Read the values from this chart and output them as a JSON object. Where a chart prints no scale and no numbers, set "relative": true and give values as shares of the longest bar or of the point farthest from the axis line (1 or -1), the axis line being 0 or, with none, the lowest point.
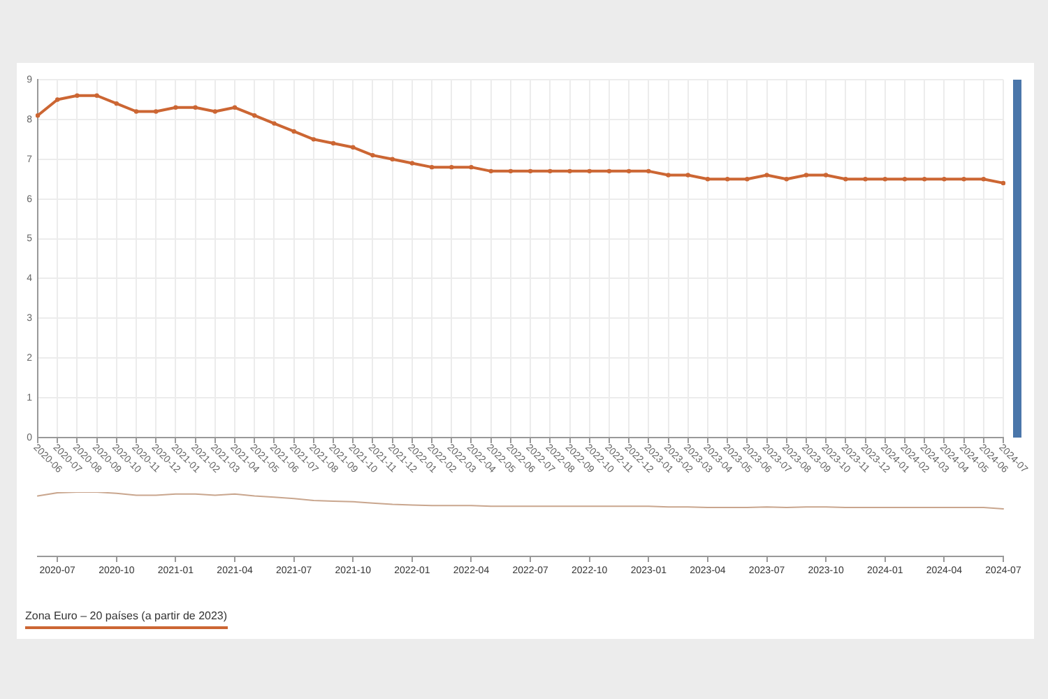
{
  "chart_data": [
    {
      "type": "line",
      "categories": [
        "2020-06",
        "2020-07",
        "2020-08",
        "2020-09",
        "2020-10",
        "2020-11",
        "2020-12",
        "2021-01",
        "2021-02",
        "2021-03",
        "2021-04",
        "2021-05",
        "2021-06",
        "2021-07",
        "2021-08",
        "2021-09",
        "2021-10",
        "2021-11",
        "2021-12",
        "2022-01",
        "2022-02",
        "2022-03",
        "2022-04",
        "2022-05",
        "2022-06",
        "2022-07",
        "2022-08",
        "2022-09",
        "2022-10",
        "2022-11",
        "2022-12",
        "2023-01",
        "2023-02",
        "2023-03",
        "2023-04",
        "2023-05",
        "2023-06",
        "2023-07",
        "2023-08",
        "2023-09",
        "2023-10",
        "2023-11",
        "2023-12",
        "2024-01",
        "2024-02",
        "2024-03",
        "2024-04",
        "2024-05",
        "2024-06",
        "2024-07"
      ],
      "series": [
        {
          "name": "Zona Euro – 20 países (a partir de 2023)",
          "color": "#cc6633",
          "values": [
            8.1,
            8.5,
            8.6,
            8.6,
            8.4,
            8.2,
            8.2,
            8.3,
            8.3,
            8.2,
            8.3,
            8.1,
            7.9,
            7.7,
            7.5,
            7.4,
            7.3,
            7.1,
            7.0,
            6.9,
            6.8,
            6.8,
            6.8,
            6.7,
            6.7,
            6.7,
            6.7,
            6.7,
            6.7,
            6.7,
            6.7,
            6.7,
            6.6,
            6.6,
            6.5,
            6.5,
            6.5,
            6.6,
            6.5,
            6.6,
            6.6,
            6.5,
            6.5,
            6.5,
            6.5,
            6.5,
            6.5,
            6.5,
            6.5,
            6.4
          ]
        }
      ],
      "ylim": [
        0,
        9
      ],
      "yticks": [
        0,
        1,
        2,
        3,
        4,
        5,
        6,
        7,
        8,
        9
      ],
      "grid": true,
      "marker": "circle",
      "legend": "bottom left"
    },
    {
      "type": "line",
      "categories": [
        null,
        "2020-07",
        null,
        null,
        "2020-10",
        null,
        null,
        "2021-01",
        null,
        null,
        "2021-04",
        null,
        null,
        "2021-07",
        null,
        null,
        "2021-10",
        null,
        null,
        "2022-01",
        null,
        null,
        "2022-04",
        null,
        null,
        "2022-07",
        null,
        null,
        "2022-10",
        null,
        null,
        "2023-01",
        null,
        null,
        "2023-04",
        null,
        null,
        "2023-07",
        null,
        null,
        "2023-10",
        null,
        null,
        "2024-01",
        null,
        null,
        "2024-04",
        null,
        null,
        "2024-07"
      ],
      "series": [
        {
          "color": "#c9a68e",
          "values": [
            0.94,
            0.99,
            1,
            1,
            0.98,
            0.95,
            0.95,
            0.97,
            0.97,
            0.95,
            0.97,
            0.94,
            0.92,
            0.9,
            0.87,
            0.86,
            0.85,
            0.83,
            0.81,
            0.8,
            0.79,
            0.79,
            0.79,
            0.78,
            0.78,
            0.78,
            0.78,
            0.78,
            0.78,
            0.78,
            0.78,
            0.78,
            0.77,
            0.77,
            0.76,
            0.76,
            0.76,
            0.77,
            0.76,
            0.77,
            0.77,
            0.76,
            0.76,
            0.76,
            0.76,
            0.76,
            0.76,
            0.76,
            0.76,
            0.74
          ]
        }
      ],
      "relative": true,
      "tick_labels": "x"
    }
  ]
}
